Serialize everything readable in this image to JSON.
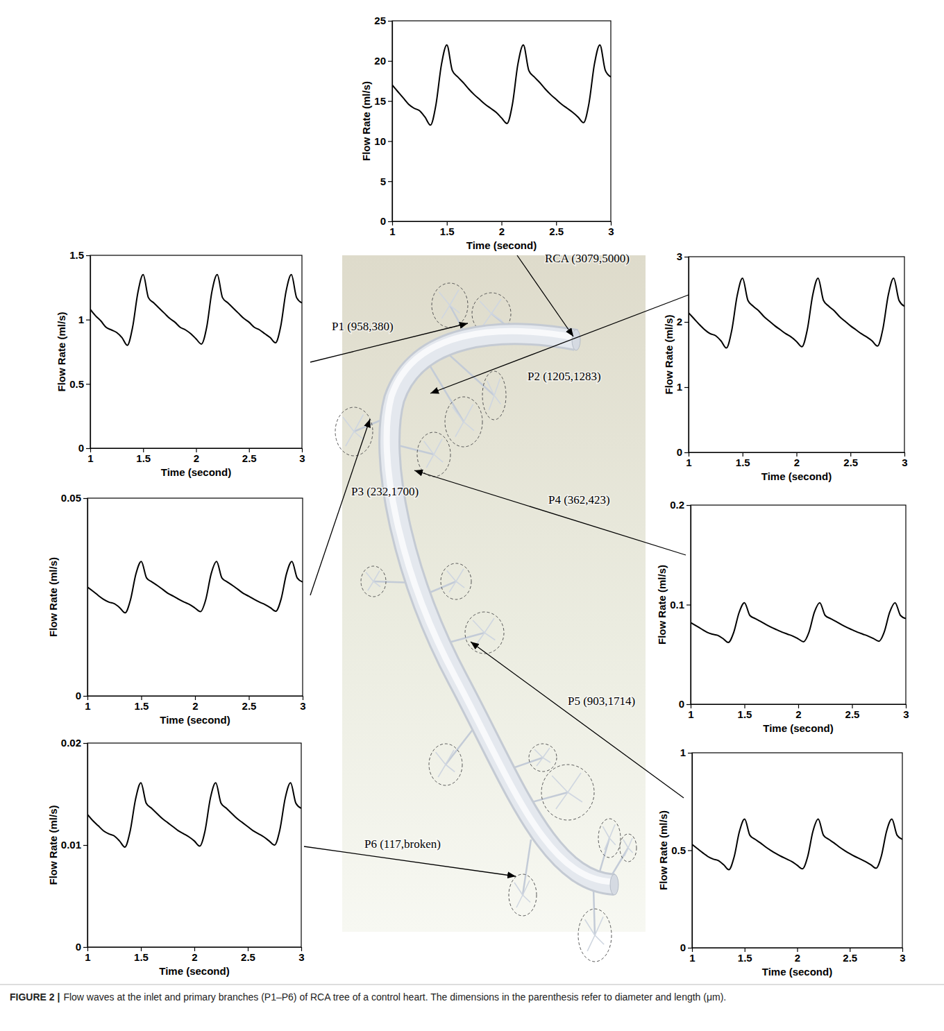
{
  "chart_data": [
    {
      "type": "line",
      "x_label": "Time (second)",
      "y_label": "Flow Rate (ml/s)",
      "annotations": [
        "RCA (3079,5000)"
      ],
      "xlim": [
        1,
        3
      ],
      "xticks": [
        1,
        1.5,
        2,
        2.5,
        3
      ],
      "ylim": [
        0,
        25
      ],
      "yticks": [
        0,
        5,
        10,
        15,
        20,
        25
      ],
      "color": "#000000",
      "x": [
        1,
        1.05,
        1.1,
        1.15,
        1.2,
        1.25,
        1.3,
        1.35,
        1.4,
        1.45,
        1.5,
        1.55,
        1.6,
        1.65,
        1.7,
        1.75,
        1.8,
        1.85,
        1.9,
        1.95,
        2,
        2.05,
        2.1,
        2.15,
        2.2,
        2.25,
        2.3,
        2.35,
        2.4,
        2.45,
        2.5,
        2.55,
        2.6,
        2.65,
        2.7,
        2.75,
        2.8,
        2.85,
        2.9,
        2.95,
        3
      ],
      "values": [
        17,
        16.2,
        15.4,
        14.6,
        14.1,
        13.8,
        13,
        12,
        14.5,
        19.5,
        22,
        18.8,
        18,
        17.3,
        16.5,
        15.8,
        15.2,
        14.6,
        14.1,
        13.6,
        12.9,
        12.2,
        14.6,
        19.6,
        22,
        18.8,
        18,
        17.3,
        16.5,
        15.8,
        15.2,
        14.6,
        14.1,
        13.6,
        13,
        12.3,
        14.7,
        19.6,
        22,
        18.8,
        18
      ]
    },
    {
      "type": "line",
      "x_label": "Time (second)",
      "y_label": "Flow Rate (ml/s)",
      "annotations": [
        "P1 (958,380)"
      ],
      "xlim": [
        1,
        3
      ],
      "xticks": [
        1,
        1.5,
        2,
        2.5,
        3
      ],
      "ylim": [
        0,
        1.5
      ],
      "yticks": [
        0,
        0.5,
        1,
        1.5
      ],
      "color": "#000000",
      "x": [
        1,
        1.05,
        1.1,
        1.15,
        1.2,
        1.25,
        1.3,
        1.35,
        1.4,
        1.45,
        1.5,
        1.55,
        1.6,
        1.65,
        1.7,
        1.75,
        1.8,
        1.85,
        1.9,
        1.95,
        2,
        2.05,
        2.1,
        2.15,
        2.2,
        2.25,
        2.3,
        2.35,
        2.4,
        2.45,
        2.5,
        2.55,
        2.6,
        2.65,
        2.7,
        2.75,
        2.8,
        2.85,
        2.9,
        2.95,
        3
      ],
      "values": [
        1.08,
        1.03,
        0.99,
        0.94,
        0.92,
        0.9,
        0.86,
        0.8,
        0.94,
        1.21,
        1.35,
        1.17,
        1.13,
        1.09,
        1.05,
        1.01,
        0.98,
        0.94,
        0.92,
        0.89,
        0.85,
        0.81,
        0.94,
        1.22,
        1.35,
        1.17,
        1.13,
        1.09,
        1.05,
        1.01,
        0.98,
        0.94,
        0.92,
        0.89,
        0.86,
        0.82,
        0.95,
        1.22,
        1.35,
        1.17,
        1.13
      ]
    },
    {
      "type": "line",
      "x_label": "Time (second)",
      "y_label": "Flow Rate (ml/s)",
      "annotations": [
        "P2 (1205,1283)"
      ],
      "xlim": [
        1,
        3
      ],
      "xticks": [
        1,
        1.5,
        2,
        2.5,
        3
      ],
      "ylim": [
        0,
        3
      ],
      "yticks": [
        0,
        1,
        2,
        3
      ],
      "color": "#000000",
      "x": [
        1,
        1.05,
        1.1,
        1.15,
        1.2,
        1.25,
        1.3,
        1.35,
        1.4,
        1.45,
        1.5,
        1.55,
        1.6,
        1.65,
        1.7,
        1.75,
        1.8,
        1.85,
        1.9,
        1.95,
        2,
        2.05,
        2.1,
        2.15,
        2.2,
        2.25,
        2.3,
        2.35,
        2.4,
        2.45,
        2.5,
        2.55,
        2.6,
        2.65,
        2.7,
        2.75,
        2.8,
        2.85,
        2.9,
        2.95,
        3
      ],
      "values": [
        2.14,
        2.05,
        1.96,
        1.88,
        1.82,
        1.79,
        1.71,
        1.6,
        1.87,
        2.4,
        2.67,
        2.33,
        2.24,
        2.17,
        2.08,
        2.01,
        1.94,
        1.88,
        1.82,
        1.77,
        1.7,
        1.62,
        1.88,
        2.41,
        2.67,
        2.33,
        2.24,
        2.17,
        2.08,
        2.01,
        1.94,
        1.88,
        1.82,
        1.77,
        1.71,
        1.63,
        1.89,
        2.41,
        2.67,
        2.33,
        2.24
      ]
    },
    {
      "type": "line",
      "x_label": "Time (second)",
      "y_label": "Flow Rate (ml/s)",
      "annotations": [
        "P3 (232,1700)"
      ],
      "xlim": [
        1,
        3
      ],
      "xticks": [
        1,
        1.5,
        2,
        2.5,
        3
      ],
      "ylim": [
        0,
        0.05
      ],
      "yticks": [
        0,
        0.05
      ],
      "color": "#000000",
      "x": [
        1,
        1.05,
        1.1,
        1.15,
        1.2,
        1.25,
        1.3,
        1.35,
        1.4,
        1.45,
        1.5,
        1.55,
        1.6,
        1.65,
        1.7,
        1.75,
        1.8,
        1.85,
        1.9,
        1.95,
        2,
        2.05,
        2.1,
        2.15,
        2.2,
        2.25,
        2.3,
        2.35,
        2.4,
        2.45,
        2.5,
        2.55,
        2.6,
        2.65,
        2.7,
        2.75,
        2.8,
        2.85,
        2.9,
        2.95,
        3
      ],
      "values": [
        0.0275,
        0.0265,
        0.0254,
        0.0244,
        0.0237,
        0.0233,
        0.0223,
        0.021,
        0.0243,
        0.0308,
        0.034,
        0.0298,
        0.0288,
        0.0279,
        0.0269,
        0.0259,
        0.0252,
        0.0244,
        0.0237,
        0.0231,
        0.0222,
        0.0213,
        0.0244,
        0.0309,
        0.034,
        0.0298,
        0.0288,
        0.0279,
        0.0269,
        0.0259,
        0.0252,
        0.0244,
        0.0237,
        0.0231,
        0.0223,
        0.0214,
        0.0245,
        0.0309,
        0.034,
        0.0298,
        0.0288
      ]
    },
    {
      "type": "line",
      "x_label": "Time (second)",
      "y_label": "Flow Rate (ml/s)",
      "annotations": [
        "P4 (362,423)"
      ],
      "xlim": [
        1,
        3
      ],
      "xticks": [
        1,
        1.5,
        2,
        2.5,
        3
      ],
      "ylim": [
        0,
        0.2
      ],
      "yticks": [
        0,
        0.1,
        0.2
      ],
      "color": "#000000",
      "x": [
        1,
        1.05,
        1.1,
        1.15,
        1.2,
        1.25,
        1.3,
        1.35,
        1.4,
        1.45,
        1.5,
        1.55,
        1.6,
        1.65,
        1.7,
        1.75,
        1.8,
        1.85,
        1.9,
        1.95,
        2,
        2.05,
        2.1,
        2.15,
        2.2,
        2.25,
        2.3,
        2.35,
        2.4,
        2.45,
        2.5,
        2.55,
        2.6,
        2.65,
        2.7,
        2.75,
        2.8,
        2.85,
        2.9,
        2.95,
        3
      ],
      "values": [
        0.082,
        0.0788,
        0.0756,
        0.0724,
        0.0704,
        0.0692,
        0.066,
        0.062,
        0.072,
        0.092,
        0.102,
        0.0892,
        0.086,
        0.0832,
        0.08,
        0.0772,
        0.0748,
        0.0724,
        0.0704,
        0.0684,
        0.0656,
        0.0628,
        0.0724,
        0.0924,
        0.102,
        0.0892,
        0.086,
        0.0832,
        0.08,
        0.0772,
        0.0748,
        0.0724,
        0.0704,
        0.0684,
        0.066,
        0.0632,
        0.0728,
        0.0924,
        0.102,
        0.0892,
        0.086
      ]
    },
    {
      "type": "line",
      "x_label": "Time (second)",
      "y_label": "Flow Rate (ml/s)",
      "annotations": [
        "P5 (903,1714)"
      ],
      "xlim": [
        1,
        3
      ],
      "xticks": [
        1,
        1.5,
        2,
        2.5,
        3
      ],
      "ylim": [
        0,
        1
      ],
      "yticks": [
        0,
        0.5,
        1
      ],
      "color": "#000000",
      "x": [
        1,
        1.05,
        1.1,
        1.15,
        1.2,
        1.25,
        1.3,
        1.35,
        1.4,
        1.45,
        1.5,
        1.55,
        1.6,
        1.65,
        1.7,
        1.75,
        1.8,
        1.85,
        1.9,
        1.95,
        2,
        2.05,
        2.1,
        2.15,
        2.2,
        2.25,
        2.3,
        2.35,
        2.4,
        2.45,
        2.5,
        2.55,
        2.6,
        2.65,
        2.7,
        2.75,
        2.8,
        2.85,
        2.9,
        2.95,
        3
      ],
      "values": [
        0.53,
        0.509,
        0.488,
        0.468,
        0.455,
        0.447,
        0.426,
        0.4,
        0.465,
        0.595,
        0.66,
        0.577,
        0.556,
        0.538,
        0.517,
        0.499,
        0.483,
        0.468,
        0.455,
        0.442,
        0.423,
        0.405,
        0.468,
        0.598,
        0.66,
        0.577,
        0.556,
        0.538,
        0.517,
        0.499,
        0.483,
        0.468,
        0.455,
        0.442,
        0.426,
        0.408,
        0.47,
        0.598,
        0.66,
        0.577,
        0.556
      ]
    },
    {
      "type": "line",
      "x_label": "Time (second)",
      "y_label": "Flow Rate (ml/s)",
      "annotations": [
        "P6 (117,broken)"
      ],
      "xlim": [
        1,
        3
      ],
      "xticks": [
        1,
        1.5,
        2,
        2.5,
        3
      ],
      "ylim": [
        0,
        0.02
      ],
      "yticks": [
        0,
        0.01,
        0.02
      ],
      "color": "#000000",
      "x": [
        1,
        1.05,
        1.1,
        1.15,
        1.2,
        1.25,
        1.3,
        1.35,
        1.4,
        1.45,
        1.5,
        1.55,
        1.6,
        1.65,
        1.7,
        1.75,
        1.8,
        1.85,
        1.9,
        1.95,
        2,
        2.05,
        2.1,
        2.15,
        2.2,
        2.25,
        2.3,
        2.35,
        2.4,
        2.45,
        2.5,
        2.55,
        2.6,
        2.65,
        2.7,
        2.75,
        2.8,
        2.85,
        2.9,
        2.95,
        3
      ],
      "values": [
        0.013,
        0.0124,
        0.0119,
        0.0114,
        0.0111,
        0.0109,
        0.0104,
        0.0098,
        0.0114,
        0.0145,
        0.0161,
        0.0141,
        0.0136,
        0.0131,
        0.0126,
        0.0122,
        0.0118,
        0.0114,
        0.0111,
        0.0108,
        0.0104,
        0.0099,
        0.0114,
        0.0146,
        0.0161,
        0.0141,
        0.0136,
        0.0131,
        0.0126,
        0.0122,
        0.0118,
        0.0114,
        0.0111,
        0.0108,
        0.0104,
        0.01,
        0.0115,
        0.0146,
        0.0161,
        0.0141,
        0.0136
      ]
    }
  ],
  "caption": {
    "label": "FIGURE 2 |",
    "text": "Flow waves at the inlet and primary branches (P1–P6) of RCA tree of a control heart. The dimensions in the parenthesis refer to diameter and length (μm)."
  }
}
